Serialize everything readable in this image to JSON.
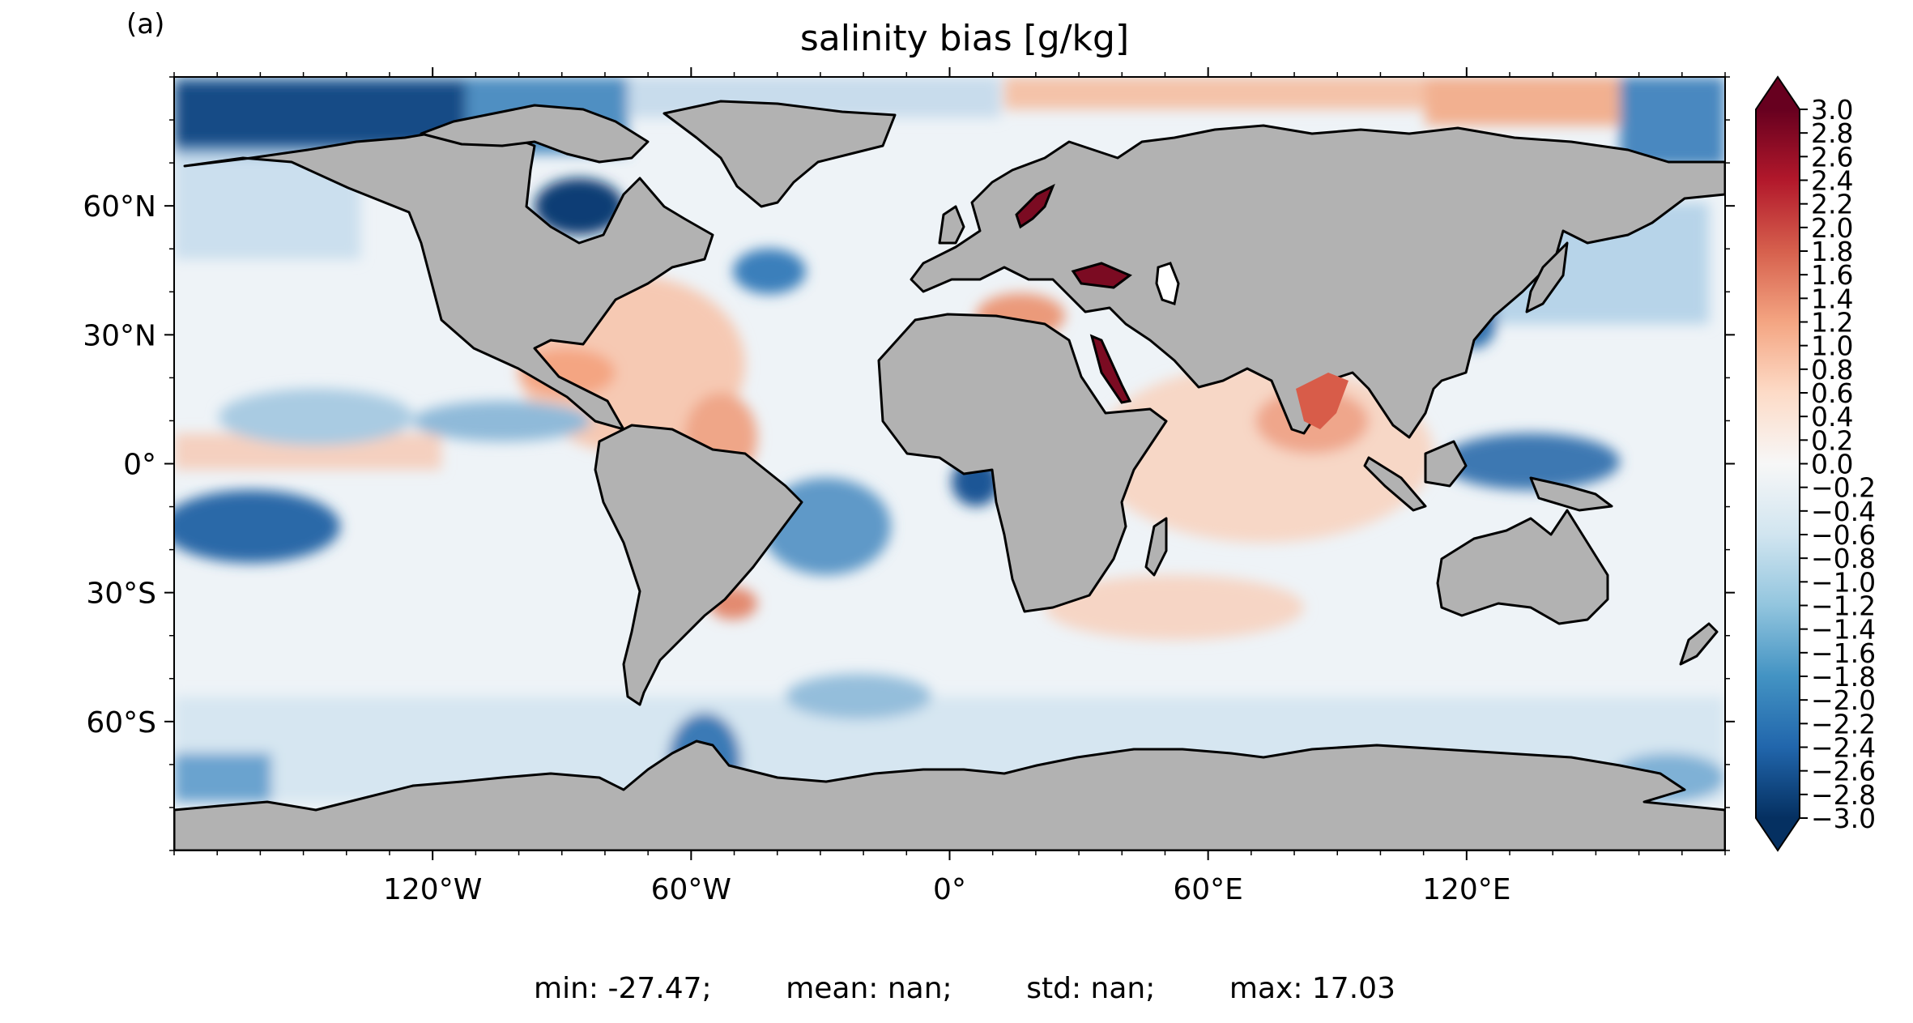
{
  "panel_label": "(a)",
  "title": "salinity bias [g/kg]",
  "stats_text": "min: -27.47;        mean: nan;        std: nan;        max: 17.03",
  "stats": {
    "min": -27.47,
    "mean": "nan",
    "std": "nan",
    "max": 17.03
  },
  "map": {
    "projection": "PlateCarree",
    "lon_range": [
      -180,
      180
    ],
    "lat_range": [
      -90,
      90
    ],
    "lon_ticks": [
      {
        "value": -120,
        "label": "120°W"
      },
      {
        "value": -60,
        "label": "60°W"
      },
      {
        "value": 0,
        "label": "0°"
      },
      {
        "value": 60,
        "label": "60°E"
      },
      {
        "value": 120,
        "label": "120°E"
      }
    ],
    "lat_ticks": [
      {
        "value": 60,
        "label": "60°N"
      },
      {
        "value": 30,
        "label": "30°N"
      },
      {
        "value": 0,
        "label": "0°"
      },
      {
        "value": -30,
        "label": "30°S"
      },
      {
        "value": -60,
        "label": "60°S"
      }
    ],
    "land_color": "#b2b2b2",
    "coastline_color": "#000000",
    "field": "salinity bias",
    "units": "g/kg"
  },
  "colorbar": {
    "cmap": "RdBu_r",
    "vmin": -3.0,
    "vmax": 3.0,
    "extend": "both",
    "tick_labels": [
      "3.0",
      "2.8",
      "2.6",
      "2.4",
      "2.2",
      "2.0",
      "1.8",
      "1.6",
      "1.4",
      "1.2",
      "1.0",
      "0.8",
      "0.6",
      "0.4",
      "0.2",
      "0.0",
      "−0.2",
      "−0.4",
      "−0.6",
      "−0.8",
      "−1.0",
      "−1.2",
      "−1.4",
      "−1.6",
      "−1.8",
      "−2.0",
      "−2.2",
      "−2.4",
      "−2.6",
      "−2.8",
      "−3.0"
    ],
    "colors": [
      "#053061",
      "#2166ac",
      "#4393c3",
      "#92c5de",
      "#d1e5f0",
      "#f7f7f7",
      "#fddbc7",
      "#f4a582",
      "#d6604d",
      "#b2182b",
      "#67001f"
    ]
  }
}
